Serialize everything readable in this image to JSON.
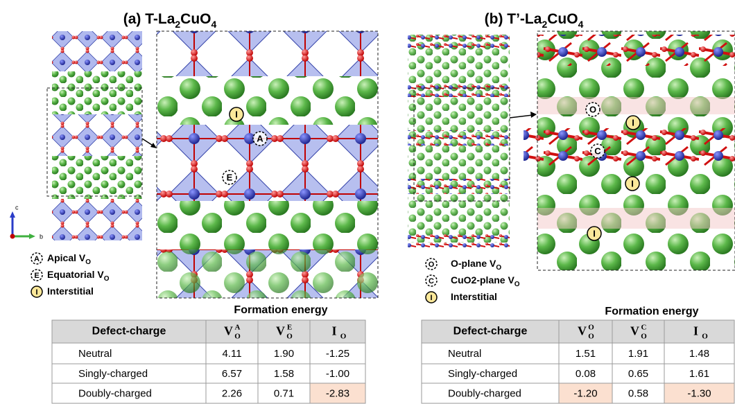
{
  "panel_a": {
    "title": [
      "(a) T-La",
      "2",
      "CuO",
      "4"
    ],
    "axis_labels": [
      "c",
      "b"
    ],
    "structure_markers": [
      "I",
      "A",
      "E"
    ],
    "legend": [
      {
        "symbol": "A",
        "text": "Apical V",
        "sub": "O"
      },
      {
        "symbol": "E",
        "text": "Equatorial V",
        "sub": "O"
      },
      {
        "symbol": "I",
        "text": "Interstitial"
      }
    ],
    "table": {
      "caption": "Formation energy",
      "header": [
        {
          "text": "Defect-charge"
        },
        {
          "base": "V",
          "sub": "O",
          "sup": "A"
        },
        {
          "base": "V",
          "sub": "O",
          "sup": "E"
        },
        {
          "base": "I",
          "sub": "O"
        }
      ],
      "rows": [
        [
          "Neutral",
          "4.11",
          "1.90",
          "-1.25"
        ],
        [
          "Singly-charged",
          "6.57",
          "1.58",
          "-1.00"
        ],
        [
          "Doubly-charged",
          "2.26",
          "0.71",
          "-2.83"
        ]
      ]
    }
  },
  "panel_b": {
    "title": [
      "(b) T’-La",
      "2",
      "CuO",
      "4"
    ],
    "structure_markers": [
      "O",
      "I",
      "C",
      "I",
      "I"
    ],
    "legend": [
      {
        "symbol": "O",
        "text": "O-plane V",
        "sub": "O"
      },
      {
        "symbol": "C",
        "text": "CuO2-plane V",
        "sub": "O"
      },
      {
        "symbol": "I",
        "text": "Interstitial"
      }
    ],
    "table": {
      "caption": "Formation energy",
      "header": [
        {
          "text": "Defect-charge"
        },
        {
          "base": "V",
          "sub": "O",
          "sup": "O"
        },
        {
          "base": "V",
          "sub": "O",
          "sup": "C"
        },
        {
          "base": "I",
          "sub": "O"
        }
      ],
      "rows": [
        [
          "Neutral",
          "1.51",
          "1.91",
          "1.48"
        ],
        [
          "Singly-charged",
          "0.08",
          "0.65",
          "1.61"
        ],
        [
          "Doubly-charged",
          "-1.20",
          "0.58",
          "-1.30"
        ]
      ]
    }
  }
}
